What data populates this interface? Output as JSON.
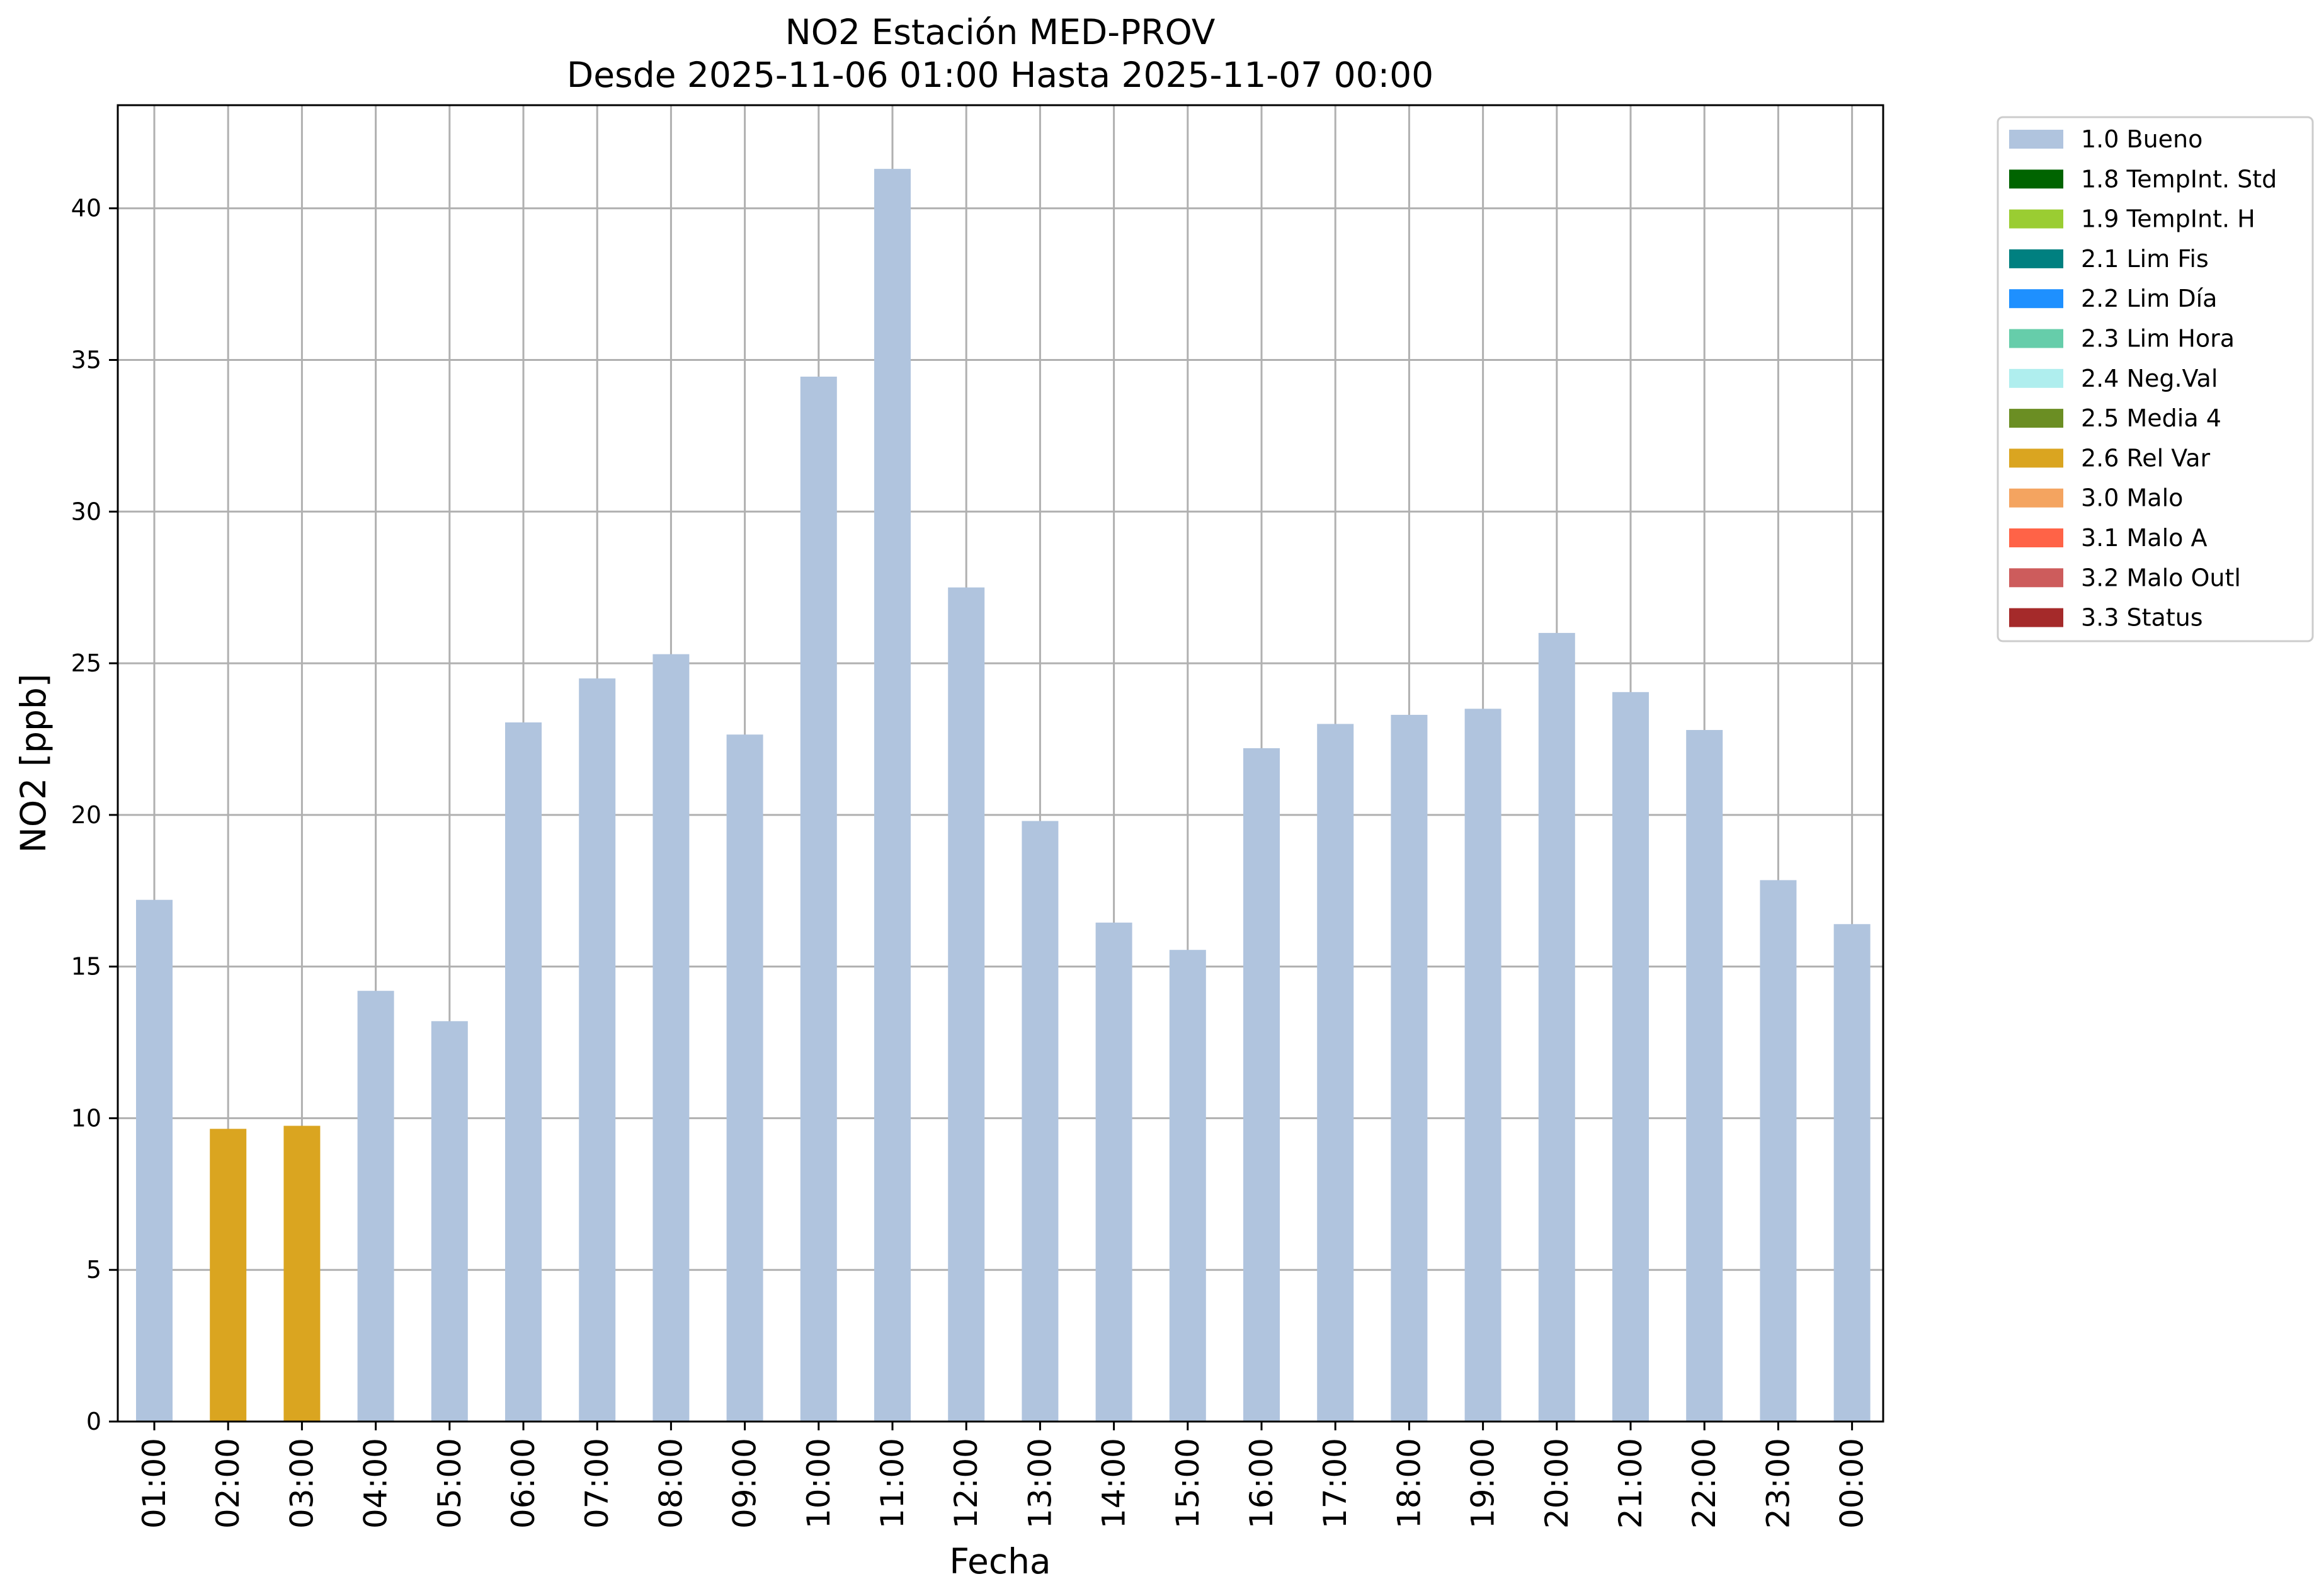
{
  "chart_data": {
    "type": "bar",
    "title": "NO2 Estación MED-PROV",
    "subtitle": "Desde 2025-11-06 01:00 Hasta 2025-11-07 00:00",
    "xlabel": "Fecha",
    "ylabel": "NO2 [ppb]",
    "ylim": [
      0,
      43.4
    ],
    "yticks": [
      0,
      5,
      10,
      15,
      20,
      25,
      30,
      35,
      40
    ],
    "grid": true,
    "legend_position": "outside-top-right",
    "categories": [
      "01:00",
      "02:00",
      "03:00",
      "04:00",
      "05:00",
      "06:00",
      "07:00",
      "08:00",
      "09:00",
      "10:00",
      "11:00",
      "12:00",
      "13:00",
      "14:00",
      "15:00",
      "16:00",
      "17:00",
      "18:00",
      "19:00",
      "20:00",
      "21:00",
      "22:00",
      "23:00",
      "00:00"
    ],
    "values": [
      17.2,
      9.65,
      9.75,
      14.2,
      13.2,
      23.05,
      24.5,
      25.3,
      22.65,
      34.45,
      41.3,
      27.5,
      19.8,
      16.45,
      15.55,
      22.2,
      23.0,
      23.3,
      23.5,
      26.0,
      24.05,
      22.8,
      17.85,
      16.4
    ],
    "flags": [
      "1.0 Bueno",
      "2.6 Rel Var",
      "2.6 Rel Var",
      "1.0 Bueno",
      "1.0 Bueno",
      "1.0 Bueno",
      "1.0 Bueno",
      "1.0 Bueno",
      "1.0 Bueno",
      "1.0 Bueno",
      "1.0 Bueno",
      "1.0 Bueno",
      "1.0 Bueno",
      "1.0 Bueno",
      "1.0 Bueno",
      "1.0 Bueno",
      "1.0 Bueno",
      "1.0 Bueno",
      "1.0 Bueno",
      "1.0 Bueno",
      "1.0 Bueno",
      "1.0 Bueno",
      "1.0 Bueno",
      "1.0 Bueno"
    ],
    "legend": [
      {
        "label": "1.0 Bueno",
        "color": "#b0c4de"
      },
      {
        "label": "1.8 TempInt. Std",
        "color": "#006400"
      },
      {
        "label": "1.9 TempInt. H",
        "color": "#9acd32"
      },
      {
        "label": "2.1 Lim Fis",
        "color": "#008080"
      },
      {
        "label": "2.2 Lim Día",
        "color": "#1e90ff"
      },
      {
        "label": "2.3 Lim Hora",
        "color": "#66cdaa"
      },
      {
        "label": "2.4 Neg.Val",
        "color": "#afeeee"
      },
      {
        "label": "2.5 Media 4",
        "color": "#6b8e23"
      },
      {
        "label": "2.6 Rel Var",
        "color": "#daa520"
      },
      {
        "label": "3.0 Malo",
        "color": "#f4a460"
      },
      {
        "label": "3.1 Malo A",
        "color": "#ff6347"
      },
      {
        "label": "3.2 Malo Outl",
        "color": "#cd5c5c"
      },
      {
        "label": "3.3 Status",
        "color": "#a52a2a"
      }
    ]
  }
}
